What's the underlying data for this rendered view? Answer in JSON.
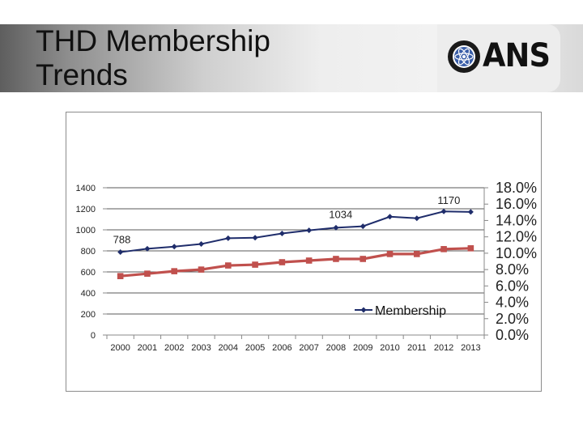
{
  "slide": {
    "title": "THD Membership\nTrends"
  },
  "logo": {
    "text": "ANS",
    "seal_text": "AMERICAN NUCLEAR SOCIETY"
  },
  "colors": {
    "membership_line": "#1f2d6b",
    "second_series": "#c0504d",
    "header_dark": "#5e5e5e"
  },
  "chart_data": {
    "type": "line",
    "title": "",
    "categories": [
      "2000",
      "2001",
      "2002",
      "2003",
      "2004",
      "2005",
      "2006",
      "2007",
      "2008",
      "2009",
      "2010",
      "2011",
      "2012",
      "2013"
    ],
    "series": [
      {
        "name": "Membership",
        "axis": "left",
        "marker": "diamond",
        "color": "#1f2d6b",
        "values": [
          788,
          820,
          840,
          865,
          920,
          925,
          965,
          995,
          1020,
          1034,
          1125,
          1110,
          1175,
          1170
        ]
      },
      {
        "axis": "right",
        "marker": "square",
        "color": "#c0504d",
        "values": [
          7.2,
          7.5,
          7.8,
          8.0,
          8.5,
          8.6,
          8.9,
          9.1,
          9.3,
          9.3,
          9.9,
          9.9,
          10.5,
          10.6
        ]
      }
    ],
    "y_left": {
      "ticks": [
        "0",
        "200",
        "400",
        "600",
        "800",
        "1000",
        "1200",
        "1400"
      ],
      "ylim": [
        0,
        1400
      ]
    },
    "y_right": {
      "ticks": [
        "0.0%",
        "2.0%",
        "4.0%",
        "6.0%",
        "8.0%",
        "10.0%",
        "12.0%",
        "14.0%",
        "16.0%",
        "18.0%"
      ],
      "ylim": [
        0,
        18
      ]
    },
    "data_labels": [
      {
        "index": 0,
        "text": "788"
      },
      {
        "index": 9,
        "text": "1034"
      },
      {
        "index": 13,
        "text": "1170"
      }
    ],
    "legend": {
      "placement": "inside-bottom-right",
      "entries": [
        "Membership"
      ]
    },
    "grid": true
  }
}
